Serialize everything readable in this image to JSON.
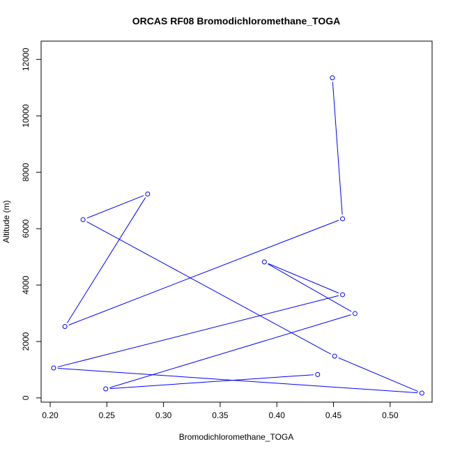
{
  "chart_data": {
    "type": "line",
    "title": "ORCAS RF08 Bromodichloromethane_TOGA",
    "xlabel": "Bromodichloromethane_TOGA",
    "ylabel": "Altitude (m)",
    "xlim": [
      0.192,
      0.537
    ],
    "ylim": [
      -150,
      12650
    ],
    "xticks": [
      0.2,
      0.25,
      0.3,
      0.35,
      0.4,
      0.45,
      0.5
    ],
    "xtick_labels": [
      "0.20",
      "0.25",
      "0.30",
      "0.35",
      "0.40",
      "0.45",
      "0.50"
    ],
    "yticks": [
      0,
      2000,
      4000,
      6000,
      8000,
      10000,
      12000
    ],
    "ytick_labels": [
      "0",
      "2000",
      "4000",
      "6000",
      "8000",
      "10000",
      "12000"
    ],
    "grid": false,
    "marker": "open-circle",
    "series": [
      {
        "color": "#0000ff",
        "x": [
          0.449,
          0.458,
          0.213,
          0.286,
          0.229,
          0.451,
          0.528,
          0.203,
          0.458,
          0.389,
          0.469,
          0.249,
          0.436
        ],
        "y": [
          11350,
          6350,
          2530,
          7230,
          6320,
          1480,
          170,
          1060,
          3660,
          4820,
          2990,
          320,
          830
        ]
      }
    ]
  }
}
